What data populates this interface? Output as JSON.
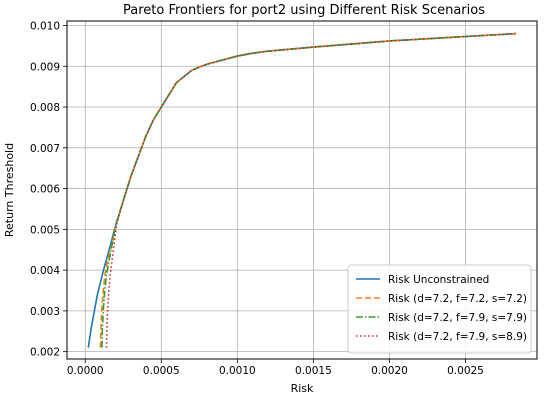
{
  "chart_data": {
    "type": "line",
    "title": "Pareto Frontiers for port2 using Different Risk Scenarios",
    "xlabel": "Risk",
    "ylabel": "Return Threshold",
    "xlim": [
      -0.00012,
      0.00297
    ],
    "ylim": [
      0.00182,
      0.01011
    ],
    "xticks": [
      0.0,
      0.0005,
      0.001,
      0.0015,
      0.002,
      0.0025
    ],
    "xtick_labels": [
      "0.0000",
      "0.0005",
      "0.0010",
      "0.0015",
      "0.0020",
      "0.0025"
    ],
    "yticks": [
      0.002,
      0.003,
      0.004,
      0.005,
      0.006,
      0.007,
      0.008,
      0.009,
      0.01
    ],
    "ytick_labels": [
      "0.002",
      "0.003",
      "0.004",
      "0.005",
      "0.006",
      "0.007",
      "0.008",
      "0.009",
      "0.010"
    ],
    "grid": true,
    "legend_position": "bottom-right",
    "series": [
      {
        "name": "Risk Unconstrained",
        "color": "#1f77b4",
        "dash": "solid",
        "x": [
          2e-05,
          4e-05,
          6e-05,
          8e-05,
          0.0001,
          0.00012,
          0.00015,
          0.0002,
          0.00025,
          0.0003,
          0.00035,
          0.0004,
          0.00045,
          0.0005,
          0.00055,
          0.0006,
          0.00065,
          0.0007,
          0.00075,
          0.0008,
          0.0009,
          0.001,
          0.0011,
          0.0012,
          0.0015,
          0.002,
          0.0025,
          0.00283
        ],
        "y": [
          0.0021,
          0.0026,
          0.003,
          0.0034,
          0.0037,
          0.004,
          0.0044,
          0.0051,
          0.0057,
          0.0063,
          0.0068,
          0.0073,
          0.0077,
          0.008,
          0.0083,
          0.0086,
          0.00875,
          0.0089,
          0.00898,
          0.00905,
          0.00915,
          0.00925,
          0.00932,
          0.00937,
          0.00947,
          0.00962,
          0.00973,
          0.0098
        ]
      },
      {
        "name": "Risk (d=7.2, f=7.2, s=7.2)",
        "color": "#ff7f0e",
        "dash": "6,3",
        "x": [
          0.0001,
          0.000102,
          0.000108,
          0.000118,
          0.00013,
          0.000145,
          0.00016,
          0.00018,
          0.0002,
          0.00025,
          0.0003,
          0.00035,
          0.0004,
          0.00045,
          0.0005,
          0.00055,
          0.0006,
          0.00065,
          0.0007,
          0.00075,
          0.0008,
          0.0009,
          0.001,
          0.0011,
          0.0012,
          0.0015,
          0.002,
          0.0025,
          0.00283
        ],
        "y": [
          0.0021,
          0.0025,
          0.003,
          0.0035,
          0.0039,
          0.0042,
          0.0044,
          0.0047,
          0.0051,
          0.0057,
          0.0063,
          0.0068,
          0.0073,
          0.0077,
          0.008,
          0.0083,
          0.0086,
          0.00875,
          0.0089,
          0.00898,
          0.00905,
          0.00915,
          0.00925,
          0.00932,
          0.00937,
          0.00947,
          0.00962,
          0.00973,
          0.0098
        ]
      },
      {
        "name": "Risk (d=7.2, f=7.9, s=7.9)",
        "color": "#2ca02c",
        "dash": "7,2,1.5,2",
        "x": [
          0.00011,
          0.000112,
          0.000118,
          0.000128,
          0.00014,
          0.000155,
          0.00017,
          0.000185,
          0.0002,
          0.00025,
          0.0003,
          0.00035,
          0.0004,
          0.00045,
          0.0005,
          0.00055,
          0.0006,
          0.00065,
          0.0007,
          0.00075,
          0.0008,
          0.0009,
          0.001,
          0.0011,
          0.0012,
          0.0015,
          0.002,
          0.0025,
          0.00283
        ],
        "y": [
          0.0021,
          0.0025,
          0.003,
          0.0035,
          0.0039,
          0.0042,
          0.0045,
          0.0048,
          0.0051,
          0.0057,
          0.0063,
          0.0068,
          0.0073,
          0.0077,
          0.008,
          0.0083,
          0.0086,
          0.00875,
          0.0089,
          0.00898,
          0.00905,
          0.00915,
          0.00925,
          0.00932,
          0.00937,
          0.00947,
          0.00962,
          0.00973,
          0.0098
        ]
      },
      {
        "name": "Risk (d=7.2, f=7.9, s=8.9)",
        "color": "#d62728",
        "dash": "1.5,2.5",
        "x": [
          0.00014,
          0.000142,
          0.000147,
          0.000155,
          0.000165,
          0.000175,
          0.000185,
          0.000195,
          0.000205,
          0.00025,
          0.0003,
          0.00035,
          0.0004,
          0.00045,
          0.0005,
          0.00055,
          0.0006,
          0.00065,
          0.0007,
          0.00075,
          0.0008,
          0.0009,
          0.001,
          0.0011,
          0.0012,
          0.0015,
          0.002,
          0.0025,
          0.00283
        ],
        "y": [
          0.0021,
          0.0025,
          0.003,
          0.0035,
          0.0039,
          0.0042,
          0.0045,
          0.0048,
          0.0051,
          0.0057,
          0.0063,
          0.0068,
          0.0073,
          0.0077,
          0.008,
          0.0083,
          0.0086,
          0.00875,
          0.0089,
          0.00898,
          0.00905,
          0.00915,
          0.00925,
          0.00932,
          0.00937,
          0.00947,
          0.00962,
          0.00973,
          0.0098
        ]
      }
    ]
  }
}
